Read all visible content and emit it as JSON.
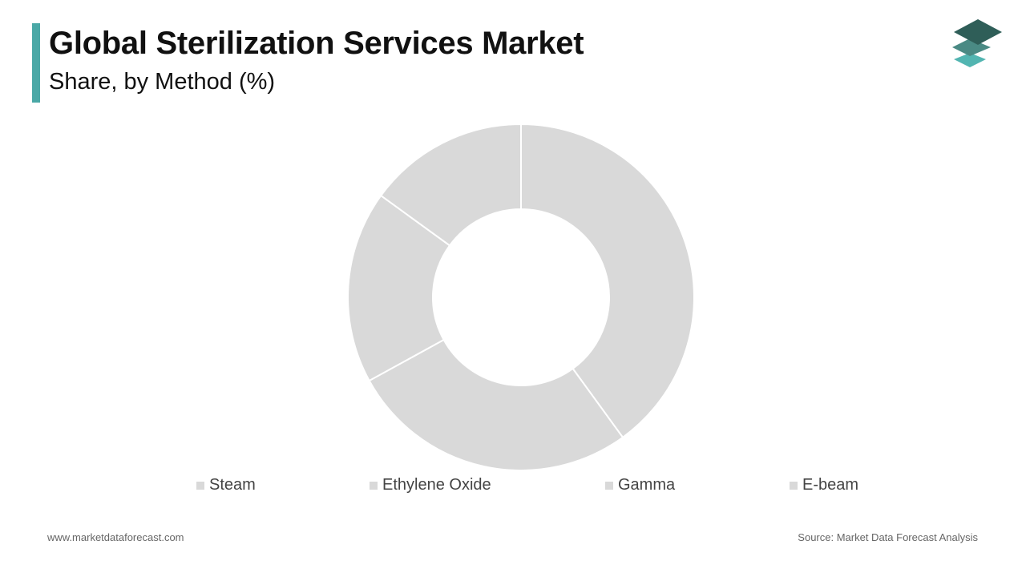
{
  "header": {
    "title": "Global Sterilization Services Market",
    "subtitle": "Share, by Method (%)"
  },
  "logo": {
    "icon": "stacked-layers-icon",
    "colors": [
      "#2f5e58",
      "#4a8a84",
      "#52b5b1"
    ]
  },
  "chart_data": {
    "type": "pie",
    "donut": true,
    "title": "Global Sterilization Services Market",
    "subtitle": "Share, by Method (%)",
    "categories": [
      "Steam",
      "Ethylene Oxide",
      "Gamma",
      "E-beam"
    ],
    "values": [
      40,
      27,
      18,
      15
    ],
    "colors": [
      "#d9d9d9",
      "#d9d9d9",
      "#d9d9d9",
      "#d9d9d9"
    ],
    "separator_color": "#ffffff",
    "start_angle": "top",
    "direction": "clockwise",
    "legend_position": "bottom"
  },
  "footer": {
    "website": "www.marketdataforecast.com",
    "source": "Source: Market Data Forecast Analysis"
  }
}
